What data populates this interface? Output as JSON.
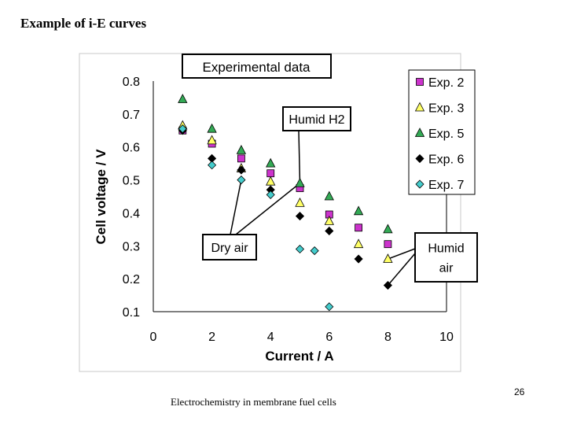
{
  "slide": {
    "title": "Example of i-E curves",
    "footer": "Electrochemistry in membrane fuel cells",
    "page_number": "26"
  },
  "chart_data": {
    "type": "scatter",
    "title": "Experimental data",
    "xlabel": "Current / A",
    "ylabel": "Cell voltage / V",
    "xlim": [
      0,
      10
    ],
    "ylim": [
      0.1,
      0.8
    ],
    "xticks": [
      "0",
      "2",
      "4",
      "6",
      "8",
      "10"
    ],
    "yticks": [
      "0.1",
      "0.2",
      "0.3",
      "0.4",
      "0.5",
      "0.6",
      "0.7",
      "0.8"
    ],
    "grid": false,
    "legend_position": "top-right",
    "series": [
      {
        "name": "Exp. 2",
        "marker": "square",
        "color": "#cc33cc",
        "x": [
          1,
          2,
          3,
          4,
          5,
          6,
          7,
          8
        ],
        "y": [
          0.65,
          0.61,
          0.565,
          0.52,
          0.475,
          0.395,
          0.355,
          0.305
        ]
      },
      {
        "name": "Exp. 3",
        "marker": "triangle",
        "color": "#ffff66",
        "x": [
          1,
          2,
          3,
          4,
          5,
          6,
          7,
          8
        ],
        "y": [
          0.665,
          0.62,
          0.535,
          0.495,
          0.43,
          0.375,
          0.305,
          0.26
        ]
      },
      {
        "name": "Exp. 5",
        "marker": "triangle",
        "color": "#33aa55",
        "x": [
          1,
          2,
          3,
          4,
          5,
          6,
          7,
          8
        ],
        "y": [
          0.745,
          0.655,
          0.59,
          0.55,
          0.49,
          0.45,
          0.405,
          0.35
        ]
      },
      {
        "name": "Exp. 6",
        "marker": "diamond",
        "color": "#000000",
        "x": [
          1,
          2,
          3,
          4,
          5,
          6,
          7,
          8
        ],
        "y": [
          0.65,
          0.565,
          0.53,
          0.47,
          0.39,
          0.345,
          0.26,
          0.18
        ]
      },
      {
        "name": "Exp. 7",
        "marker": "diamond",
        "color": "#44cccc",
        "x": [
          1,
          2,
          3,
          4,
          5,
          5.5,
          6
        ],
        "y": [
          0.655,
          0.545,
          0.5,
          0.455,
          0.29,
          0.285,
          0.115
        ]
      }
    ],
    "annotations": [
      {
        "text": "Humid H2",
        "lines": [
          "Humid H2"
        ],
        "points_to": [
          [
            5,
            0.49
          ]
        ]
      },
      {
        "text": "Dry air",
        "lines": [
          "Dry air"
        ],
        "points_to": [
          [
            3,
            0.5
          ],
          [
            5,
            0.49
          ]
        ]
      },
      {
        "text": "Humid air",
        "lines": [
          "Humid",
          "air"
        ],
        "points_to": [
          [
            8,
            0.26
          ],
          [
            8,
            0.18
          ]
        ]
      }
    ]
  }
}
